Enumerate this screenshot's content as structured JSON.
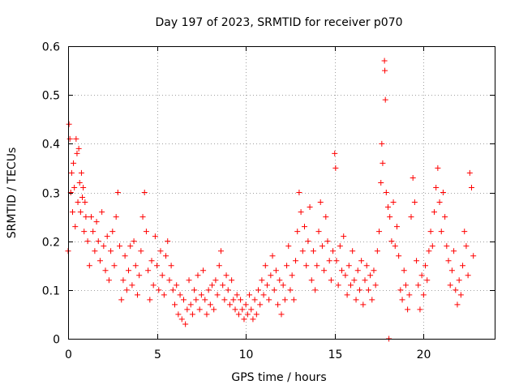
{
  "chart_data": {
    "type": "scatter",
    "title": "Day 197 of 2023, SRMTID for receiver p070",
    "xlabel": "GPS time / hours",
    "ylabel": "SRMTID / TECUs",
    "xlim": [
      0,
      24
    ],
    "ylim": [
      0,
      0.6
    ],
    "xticks": [
      0,
      5,
      10,
      15,
      20
    ],
    "xtick_labels": [
      "0",
      "5",
      "10",
      "15",
      "20"
    ],
    "yticks": [
      0,
      0.1,
      0.2,
      0.3,
      0.4,
      0.5,
      0.6
    ],
    "ytick_labels": [
      "0",
      "0.1",
      "0.2",
      "0.3",
      "0.4",
      "0.5",
      "0.6"
    ],
    "grid": true,
    "marker": "+",
    "color": "#ff0000",
    "series": [
      {
        "name": "SRMTID",
        "points": [
          [
            0.0,
            0.18
          ],
          [
            0.05,
            0.44
          ],
          [
            0.1,
            0.41
          ],
          [
            0.15,
            0.3
          ],
          [
            0.2,
            0.34
          ],
          [
            0.25,
            0.26
          ],
          [
            0.3,
            0.36
          ],
          [
            0.35,
            0.31
          ],
          [
            0.4,
            0.23
          ],
          [
            0.45,
            0.41
          ],
          [
            0.5,
            0.38
          ],
          [
            0.55,
            0.28
          ],
          [
            0.6,
            0.39
          ],
          [
            0.65,
            0.32
          ],
          [
            0.7,
            0.26
          ],
          [
            0.75,
            0.34
          ],
          [
            0.8,
            0.29
          ],
          [
            0.85,
            0.31
          ],
          [
            0.9,
            0.22
          ],
          [
            0.95,
            0.28
          ],
          [
            1.0,
            0.25
          ],
          [
            1.1,
            0.2
          ],
          [
            1.2,
            0.15
          ],
          [
            1.3,
            0.25
          ],
          [
            1.4,
            0.22
          ],
          [
            1.5,
            0.18
          ],
          [
            1.6,
            0.24
          ],
          [
            1.7,
            0.2
          ],
          [
            1.8,
            0.16
          ],
          [
            1.9,
            0.26
          ],
          [
            2.0,
            0.19
          ],
          [
            2.1,
            0.14
          ],
          [
            2.2,
            0.21
          ],
          [
            2.3,
            0.12
          ],
          [
            2.4,
            0.18
          ],
          [
            2.5,
            0.22
          ],
          [
            2.6,
            0.15
          ],
          [
            2.7,
            0.25
          ],
          [
            2.8,
            0.3
          ],
          [
            2.9,
            0.19
          ],
          [
            3.0,
            0.08
          ],
          [
            3.1,
            0.12
          ],
          [
            3.2,
            0.17
          ],
          [
            3.3,
            0.1
          ],
          [
            3.4,
            0.14
          ],
          [
            3.5,
            0.19
          ],
          [
            3.6,
            0.11
          ],
          [
            3.7,
            0.2
          ],
          [
            3.8,
            0.15
          ],
          [
            3.9,
            0.09
          ],
          [
            4.0,
            0.13
          ],
          [
            4.1,
            0.18
          ],
          [
            4.2,
            0.25
          ],
          [
            4.3,
            0.3
          ],
          [
            4.4,
            0.22
          ],
          [
            4.5,
            0.14
          ],
          [
            4.6,
            0.08
          ],
          [
            4.7,
            0.16
          ],
          [
            4.8,
            0.11
          ],
          [
            4.9,
            0.21
          ],
          [
            5.0,
            0.15
          ],
          [
            5.1,
            0.1
          ],
          [
            5.2,
            0.18
          ],
          [
            5.3,
            0.13
          ],
          [
            5.4,
            0.09
          ],
          [
            5.5,
            0.17
          ],
          [
            5.6,
            0.2
          ],
          [
            5.7,
            0.12
          ],
          [
            5.8,
            0.15
          ],
          [
            5.9,
            0.1
          ],
          [
            6.0,
            0.07
          ],
          [
            6.1,
            0.11
          ],
          [
            6.2,
            0.05
          ],
          [
            6.3,
            0.09
          ],
          [
            6.4,
            0.04
          ],
          [
            6.5,
            0.08
          ],
          [
            6.6,
            0.03
          ],
          [
            6.7,
            0.06
          ],
          [
            6.8,
            0.12
          ],
          [
            6.9,
            0.07
          ],
          [
            7.0,
            0.05
          ],
          [
            7.1,
            0.1
          ],
          [
            7.2,
            0.08
          ],
          [
            7.3,
            0.13
          ],
          [
            7.4,
            0.06
          ],
          [
            7.5,
            0.09
          ],
          [
            7.6,
            0.14
          ],
          [
            7.7,
            0.08
          ],
          [
            7.8,
            0.05
          ],
          [
            7.9,
            0.1
          ],
          [
            8.0,
            0.07
          ],
          [
            8.1,
            0.11
          ],
          [
            8.2,
            0.06
          ],
          [
            8.3,
            0.12
          ],
          [
            8.4,
            0.09
          ],
          [
            8.5,
            0.15
          ],
          [
            8.6,
            0.18
          ],
          [
            8.7,
            0.11
          ],
          [
            8.8,
            0.08
          ],
          [
            8.9,
            0.13
          ],
          [
            9.0,
            0.1
          ],
          [
            9.1,
            0.07
          ],
          [
            9.2,
            0.12
          ],
          [
            9.3,
            0.08
          ],
          [
            9.4,
            0.06
          ],
          [
            9.5,
            0.09
          ],
          [
            9.6,
            0.05
          ],
          [
            9.7,
            0.08
          ],
          [
            9.8,
            0.06
          ],
          [
            9.9,
            0.04
          ],
          [
            10.0,
            0.07
          ],
          [
            10.1,
            0.05
          ],
          [
            10.2,
            0.09
          ],
          [
            10.3,
            0.06
          ],
          [
            10.4,
            0.04
          ],
          [
            10.5,
            0.08
          ],
          [
            10.6,
            0.05
          ],
          [
            10.7,
            0.1
          ],
          [
            10.8,
            0.07
          ],
          [
            10.9,
            0.12
          ],
          [
            11.0,
            0.09
          ],
          [
            11.1,
            0.15
          ],
          [
            11.2,
            0.11
          ],
          [
            11.3,
            0.08
          ],
          [
            11.4,
            0.13
          ],
          [
            11.5,
            0.17
          ],
          [
            11.6,
            0.1
          ],
          [
            11.7,
            0.14
          ],
          [
            11.8,
            0.07
          ],
          [
            11.9,
            0.12
          ],
          [
            12.0,
            0.05
          ],
          [
            12.1,
            0.11
          ],
          [
            12.2,
            0.08
          ],
          [
            12.3,
            0.15
          ],
          [
            12.4,
            0.19
          ],
          [
            12.5,
            0.1
          ],
          [
            12.6,
            0.13
          ],
          [
            12.7,
            0.08
          ],
          [
            12.8,
            0.16
          ],
          [
            12.9,
            0.22
          ],
          [
            13.0,
            0.3
          ],
          [
            13.1,
            0.26
          ],
          [
            13.2,
            0.18
          ],
          [
            13.3,
            0.23
          ],
          [
            13.4,
            0.15
          ],
          [
            13.5,
            0.2
          ],
          [
            13.6,
            0.27
          ],
          [
            13.7,
            0.12
          ],
          [
            13.8,
            0.18
          ],
          [
            13.9,
            0.1
          ],
          [
            14.0,
            0.15
          ],
          [
            14.1,
            0.22
          ],
          [
            14.2,
            0.28
          ],
          [
            14.3,
            0.19
          ],
          [
            14.4,
            0.14
          ],
          [
            14.5,
            0.25
          ],
          [
            14.6,
            0.2
          ],
          [
            14.7,
            0.16
          ],
          [
            14.8,
            0.12
          ],
          [
            14.9,
            0.18
          ],
          [
            15.0,
            0.38
          ],
          [
            15.05,
            0.35
          ],
          [
            15.1,
            0.16
          ],
          [
            15.2,
            0.11
          ],
          [
            15.3,
            0.19
          ],
          [
            15.4,
            0.14
          ],
          [
            15.5,
            0.21
          ],
          [
            15.6,
            0.13
          ],
          [
            15.7,
            0.09
          ],
          [
            15.8,
            0.15
          ],
          [
            15.9,
            0.11
          ],
          [
            16.0,
            0.18
          ],
          [
            16.1,
            0.12
          ],
          [
            16.2,
            0.08
          ],
          [
            16.3,
            0.14
          ],
          [
            16.4,
            0.1
          ],
          [
            16.5,
            0.16
          ],
          [
            16.6,
            0.07
          ],
          [
            16.7,
            0.12
          ],
          [
            16.8,
            0.15
          ],
          [
            16.9,
            0.1
          ],
          [
            17.0,
            0.13
          ],
          [
            17.1,
            0.08
          ],
          [
            17.2,
            0.14
          ],
          [
            17.3,
            0.11
          ],
          [
            17.4,
            0.18
          ],
          [
            17.5,
            0.22
          ],
          [
            17.6,
            0.32
          ],
          [
            17.65,
            0.4
          ],
          [
            17.7,
            0.36
          ],
          [
            17.8,
            0.57
          ],
          [
            17.82,
            0.55
          ],
          [
            17.85,
            0.49
          ],
          [
            17.9,
            0.3
          ],
          [
            18.0,
            0.27
          ],
          [
            18.05,
            0.0
          ],
          [
            18.1,
            0.25
          ],
          [
            18.2,
            0.2
          ],
          [
            18.3,
            0.28
          ],
          [
            18.4,
            0.19
          ],
          [
            18.5,
            0.23
          ],
          [
            18.6,
            0.17
          ],
          [
            18.7,
            0.1
          ],
          [
            18.8,
            0.08
          ],
          [
            18.9,
            0.14
          ],
          [
            19.0,
            0.11
          ],
          [
            19.1,
            0.06
          ],
          [
            19.2,
            0.09
          ],
          [
            19.3,
            0.25
          ],
          [
            19.4,
            0.33
          ],
          [
            19.5,
            0.28
          ],
          [
            19.6,
            0.16
          ],
          [
            19.7,
            0.11
          ],
          [
            19.8,
            0.06
          ],
          [
            19.9,
            0.13
          ],
          [
            20.0,
            0.09
          ],
          [
            20.1,
            0.15
          ],
          [
            20.2,
            0.12
          ],
          [
            20.3,
            0.18
          ],
          [
            20.4,
            0.22
          ],
          [
            20.5,
            0.19
          ],
          [
            20.6,
            0.26
          ],
          [
            20.7,
            0.31
          ],
          [
            20.8,
            0.35
          ],
          [
            20.9,
            0.28
          ],
          [
            21.0,
            0.22
          ],
          [
            21.1,
            0.3
          ],
          [
            21.2,
            0.25
          ],
          [
            21.3,
            0.19
          ],
          [
            21.4,
            0.16
          ],
          [
            21.5,
            0.11
          ],
          [
            21.6,
            0.14
          ],
          [
            21.7,
            0.18
          ],
          [
            21.8,
            0.1
          ],
          [
            21.9,
            0.07
          ],
          [
            22.0,
            0.12
          ],
          [
            22.1,
            0.09
          ],
          [
            22.2,
            0.15
          ],
          [
            22.3,
            0.22
          ],
          [
            22.4,
            0.19
          ],
          [
            22.5,
            0.13
          ],
          [
            22.6,
            0.34
          ],
          [
            22.7,
            0.31
          ],
          [
            22.8,
            0.17
          ]
        ]
      }
    ]
  }
}
